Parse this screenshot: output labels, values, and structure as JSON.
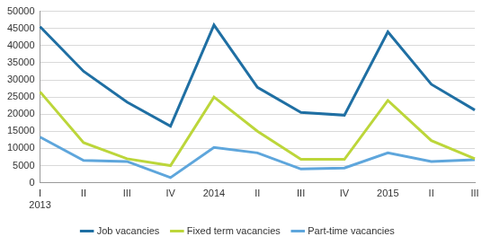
{
  "chart_data": {
    "type": "line",
    "categories": [
      [
        "I",
        "2013"
      ],
      "II",
      "III",
      "IV",
      "2014",
      "II",
      "III",
      "IV",
      "2015",
      "II",
      "III"
    ],
    "series": [
      {
        "name": "Job vacancies",
        "color": "#1f6fa3",
        "values": [
          45500,
          32500,
          23500,
          16500,
          46000,
          27800,
          20500,
          19700,
          44000,
          28700,
          21200
        ]
      },
      {
        "name": "Fixed term vacancies",
        "color": "#bcd63a",
        "values": [
          26500,
          11700,
          7000,
          5000,
          25000,
          15000,
          6800,
          6800,
          24000,
          12300,
          7000
        ]
      },
      {
        "name": "Part-time vacancies",
        "color": "#5ea6dc",
        "values": [
          13300,
          6500,
          6200,
          1500,
          10300,
          8700,
          4000,
          4300,
          8700,
          6200,
          6700
        ]
      }
    ],
    "ylim": [
      0,
      50000
    ],
    "yticks": [
      0,
      5000,
      10000,
      15000,
      20000,
      25000,
      30000,
      35000,
      40000,
      45000,
      50000
    ],
    "grid": true,
    "legend": "bottom"
  }
}
